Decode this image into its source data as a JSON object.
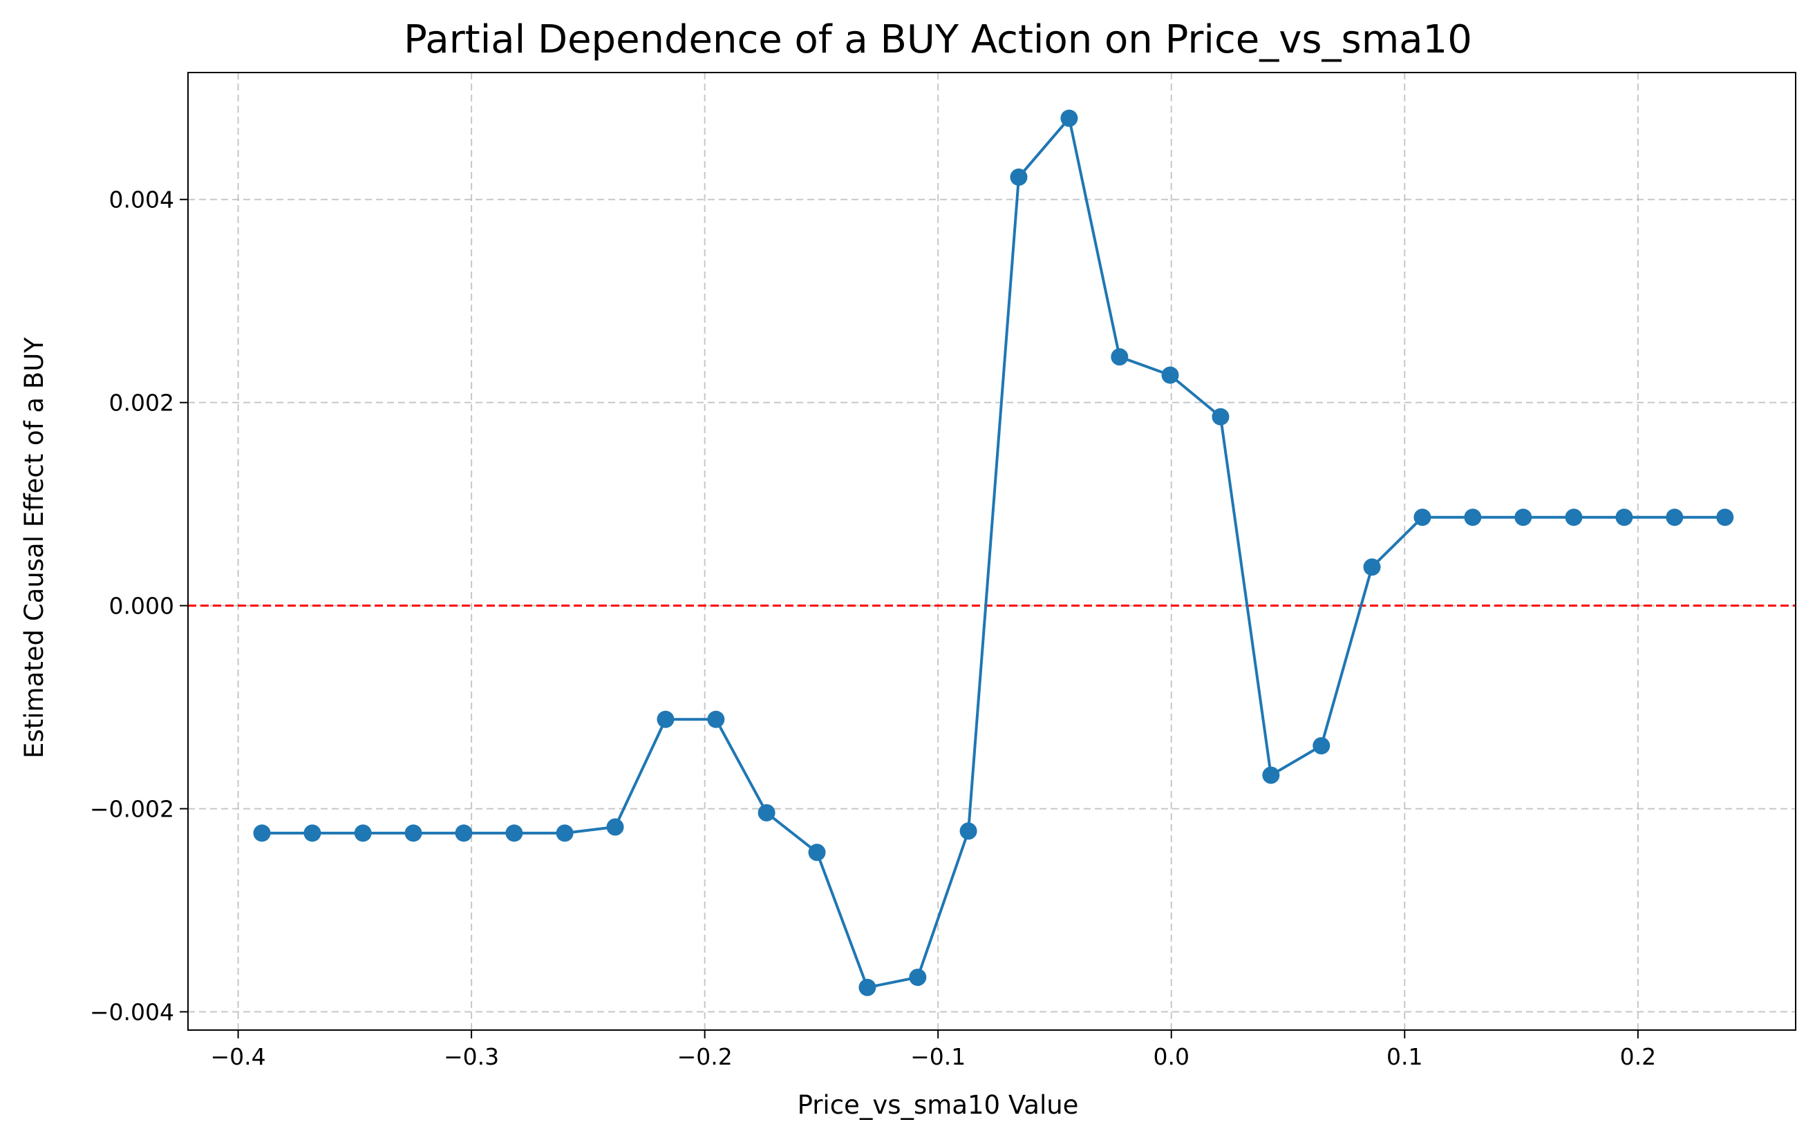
{
  "chart_data": {
    "type": "line",
    "title": "Partial Dependence of a BUY Action on Price_vs_sma10",
    "xlabel": "Price_vs_sma10 Value",
    "ylabel": "Estimated Causal Effect of a BUY",
    "xlim": [
      -0.4215,
      0.2676
    ],
    "ylim": [
      -0.00418,
      0.00525
    ],
    "grid": true,
    "x_ticks": [
      -0.4,
      -0.3,
      -0.2,
      -0.1,
      0.0,
      0.1,
      0.2
    ],
    "x_tick_labels": [
      "−0.4",
      "−0.3",
      "−0.2",
      "−0.1",
      "0.0",
      "0.1",
      "0.2"
    ],
    "y_ticks": [
      -0.004,
      -0.002,
      0.0,
      0.002,
      0.004
    ],
    "y_tick_labels": [
      "−0.004",
      "−0.002",
      "0.000",
      "0.002",
      "0.004"
    ],
    "reference_line": {
      "y": 0.0,
      "color": "#ff0000",
      "style": "dashed"
    },
    "series": [
      {
        "color": "#1f77b4",
        "marker": "circle",
        "x": [
          -0.3898,
          -0.3682,
          -0.3465,
          -0.3249,
          -0.3033,
          -0.2817,
          -0.26,
          -0.2384,
          -0.2168,
          -0.1952,
          -0.1735,
          -0.1519,
          -0.1303,
          -0.1087,
          -0.087,
          -0.0654,
          -0.0438,
          -0.0222,
          -0.0005,
          0.0211,
          0.0427,
          0.0643,
          0.086,
          0.1076,
          0.1292,
          0.1508,
          0.1725,
          0.1941,
          0.2157,
          0.2373
        ],
        "y": [
          -0.00224,
          -0.00224,
          -0.00224,
          -0.00224,
          -0.00224,
          -0.00224,
          -0.00224,
          -0.00218,
          -0.00112,
          -0.00112,
          -0.00204,
          -0.00243,
          -0.00376,
          -0.00366,
          -0.00222,
          0.00422,
          0.0048,
          0.00245,
          0.00227,
          0.00186,
          -0.00167,
          -0.00138,
          0.00038,
          0.00087,
          0.00087,
          0.00087,
          0.00087,
          0.00087,
          0.00087,
          0.00087
        ]
      }
    ]
  }
}
